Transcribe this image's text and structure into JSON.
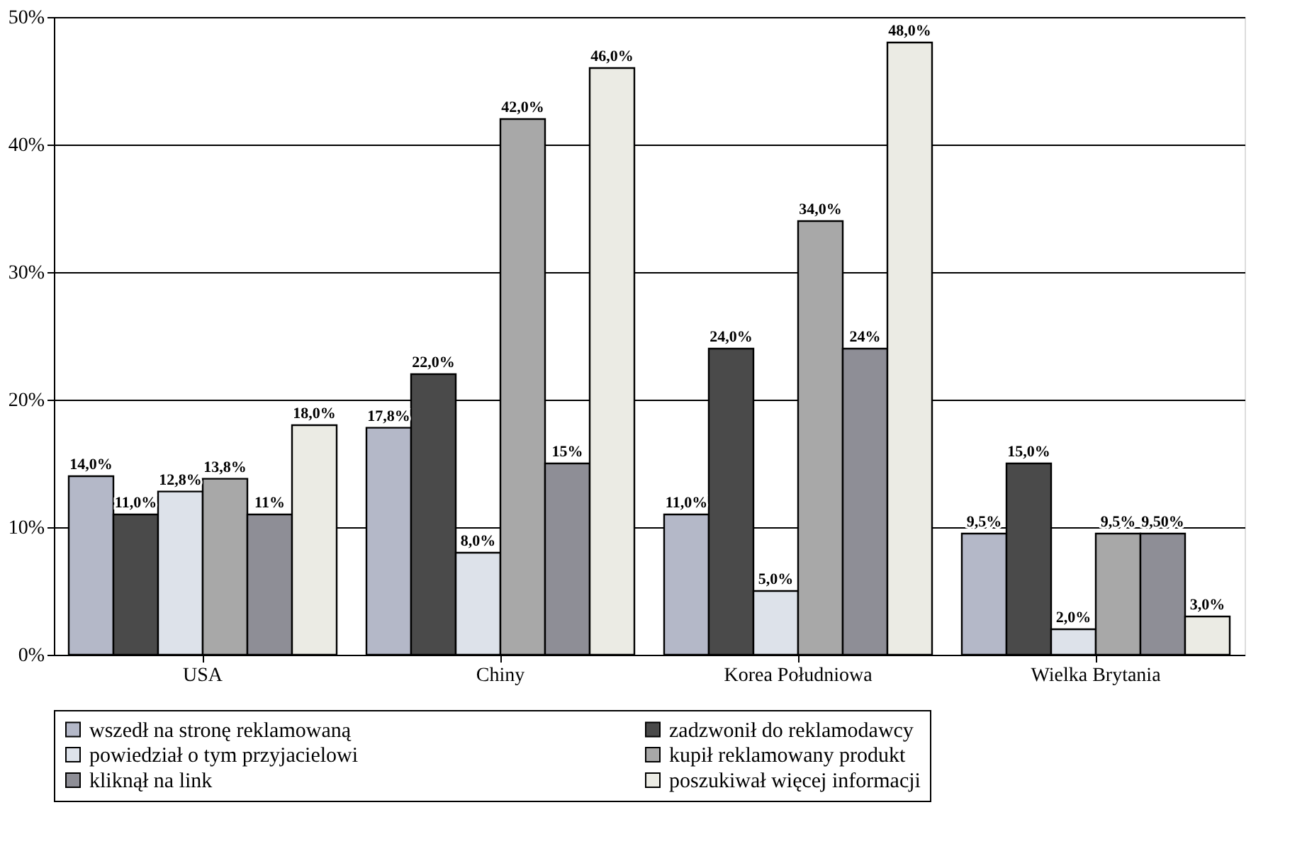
{
  "chart_data": {
    "type": "bar",
    "categories": [
      "USA",
      "Chiny",
      "Korea Południowa",
      "Wielka Brytania"
    ],
    "series": [
      {
        "name": "wszedł na stronę reklamowaną",
        "color": "#b4b8c8",
        "values": [
          14.0,
          17.8,
          11.0,
          9.5
        ],
        "value_labels": [
          "14,0%",
          "17,8%",
          "11,0%",
          "9,5%"
        ]
      },
      {
        "name": "zadzwonił do reklamodawcy",
        "color": "#4a4a4a",
        "values": [
          11.0,
          22.0,
          24.0,
          15.0
        ],
        "value_labels": [
          "11,0%",
          "22,0%",
          "24,0%",
          "15,0%"
        ]
      },
      {
        "name": "powiedział o tym przyjacielowi",
        "color": "#dde2ea",
        "values": [
          12.8,
          8.0,
          5.0,
          2.0
        ],
        "value_labels": [
          "12,8%",
          "8,0%",
          "5,0%",
          "2,0%"
        ]
      },
      {
        "name": "kupił reklamowany produkt",
        "color": "#a8a8a8",
        "values": [
          13.8,
          42.0,
          34.0,
          9.5
        ],
        "value_labels": [
          "13,8%",
          "42,0%",
          "34,0%",
          "9,5%"
        ]
      },
      {
        "name": "kliknął na link",
        "color": "#8e8e96",
        "values": [
          11.0,
          15.0,
          24.0,
          9.5
        ],
        "value_labels": [
          "11%",
          "15%",
          "24%",
          "9,50%"
        ]
      },
      {
        "name": "poszukiwał więcej informacji",
        "color": "#ebebe4",
        "values": [
          18.0,
          46.0,
          48.0,
          3.0
        ],
        "value_labels": [
          "18,0%",
          "46,0%",
          "48,0%",
          "3,0%"
        ]
      }
    ],
    "ylim": [
      0,
      50
    ],
    "yticks": [
      {
        "value": 0,
        "label": "0%"
      },
      {
        "value": 10,
        "label": "10%"
      },
      {
        "value": 20,
        "label": "20%"
      },
      {
        "value": 30,
        "label": "30%"
      },
      {
        "value": 40,
        "label": "40%"
      },
      {
        "value": 50,
        "label": "50%"
      }
    ],
    "grid": "y",
    "legend": "bottom"
  }
}
